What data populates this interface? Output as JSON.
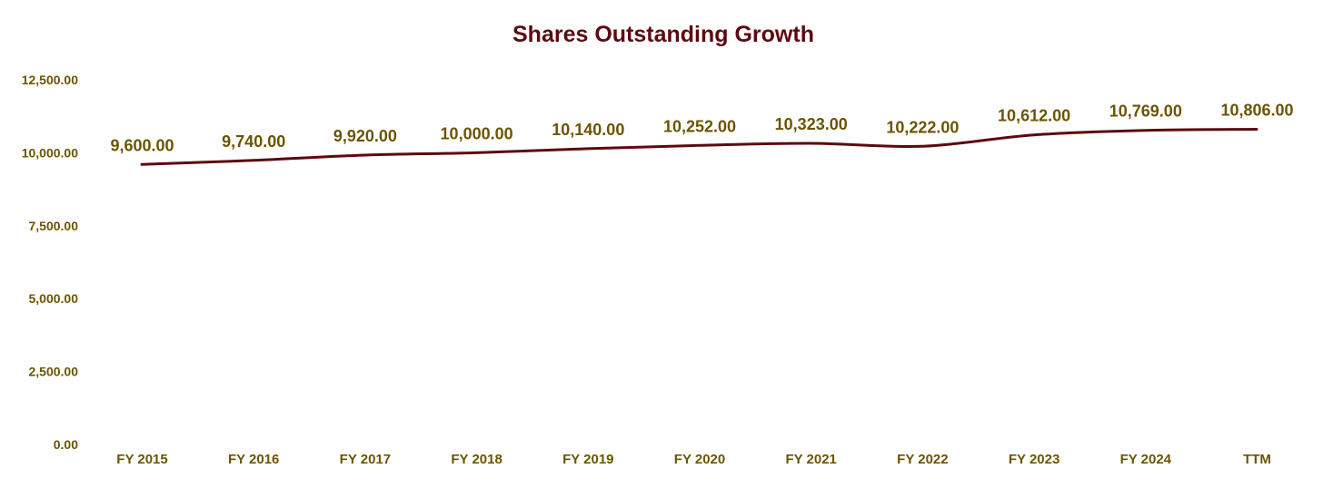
{
  "chart_data": {
    "type": "line",
    "title": "Shares Outstanding Growth",
    "xlabel": "",
    "ylabel": "",
    "categories": [
      "FY 2015",
      "FY 2016",
      "FY 2017",
      "FY 2018",
      "FY 2019",
      "FY 2020",
      "FY 2021",
      "FY 2022",
      "FY 2023",
      "FY 2024",
      "TTM"
    ],
    "values": [
      9600,
      9740,
      9920,
      10000,
      10140,
      10252,
      10323,
      10222,
      10612,
      10769,
      10806
    ],
    "data_labels": [
      "9,600.00",
      "9,740.00",
      "9,920.00",
      "10,000.00",
      "10,140.00",
      "10,252.00",
      "10,323.00",
      "10,222.00",
      "10,612.00",
      "10,769.00",
      "10,806.00"
    ],
    "yticks": [
      0,
      2500,
      5000,
      7500,
      10000,
      12500
    ],
    "ytick_labels": [
      "0.00",
      "2,500.00",
      "5,000.00",
      "7,500.00",
      "10,000.00",
      "12,500.00"
    ],
    "ylim": [
      0,
      12500
    ],
    "grid": false,
    "legend": "none",
    "line_color": "#5c0a0f",
    "label_color": "#6b5400",
    "title_color": "#5c0a0f"
  }
}
